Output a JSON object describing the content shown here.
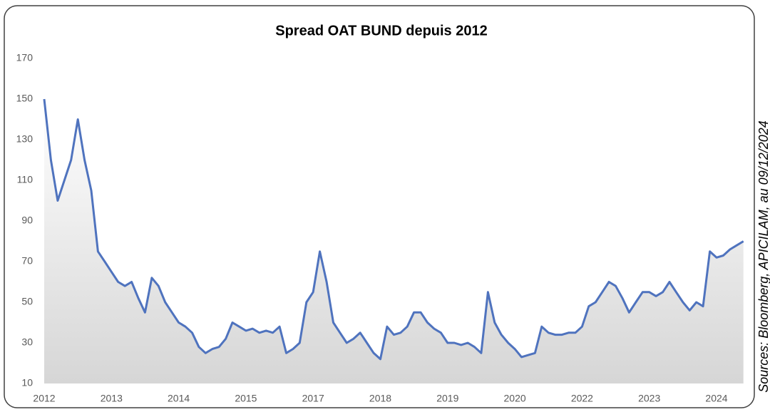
{
  "chart_data": {
    "type": "line",
    "title": "Spread OAT BUND depuis 2012",
    "source": "Sources: Bloomberg, APICILAM, au 09/12/2024",
    "categories": [
      "2012",
      null,
      null,
      null,
      null,
      null,
      null,
      null,
      null,
      null,
      "2013",
      null,
      null,
      null,
      null,
      null,
      null,
      null,
      null,
      null,
      "2014",
      null,
      null,
      null,
      null,
      null,
      null,
      null,
      null,
      null,
      "2015",
      null,
      null,
      null,
      null,
      null,
      null,
      null,
      null,
      null,
      "2017",
      null,
      null,
      null,
      null,
      null,
      null,
      null,
      null,
      null,
      "2018",
      null,
      null,
      null,
      null,
      null,
      null,
      null,
      null,
      null,
      "2019",
      null,
      null,
      null,
      null,
      null,
      null,
      null,
      null,
      null,
      "2020",
      null,
      null,
      null,
      null,
      null,
      null,
      null,
      null,
      null,
      "2022",
      null,
      null,
      null,
      null,
      null,
      null,
      null,
      null,
      null,
      "2023",
      null,
      null,
      null,
      null,
      null,
      null,
      null,
      null,
      null,
      "2024",
      null,
      null,
      null,
      null
    ],
    "values": [
      150,
      120,
      100,
      110,
      120,
      140,
      120,
      105,
      75,
      70,
      65,
      60,
      58,
      60,
      52,
      45,
      62,
      58,
      50,
      45,
      40,
      38,
      35,
      28,
      25,
      27,
      28,
      32,
      40,
      38,
      36,
      37,
      35,
      36,
      35,
      38,
      25,
      27,
      30,
      50,
      55,
      75,
      60,
      40,
      35,
      30,
      32,
      35,
      30,
      25,
      22,
      38,
      34,
      35,
      38,
      45,
      45,
      40,
      37,
      35,
      30,
      30,
      29,
      30,
      28,
      25,
      55,
      40,
      34,
      30,
      27,
      23,
      24,
      25,
      38,
      35,
      34,
      34,
      35,
      35,
      38,
      48,
      50,
      55,
      60,
      58,
      52,
      45,
      50,
      55,
      55,
      53,
      55,
      60,
      55,
      50,
      46,
      50,
      48,
      75,
      72,
      73,
      76,
      78,
      80
    ],
    "color": "#4f73be",
    "area": true,
    "ylim": [
      10,
      170
    ],
    "yticks": [
      10,
      30,
      50,
      70,
      90,
      110,
      130,
      150,
      170
    ],
    "grid": false
  }
}
